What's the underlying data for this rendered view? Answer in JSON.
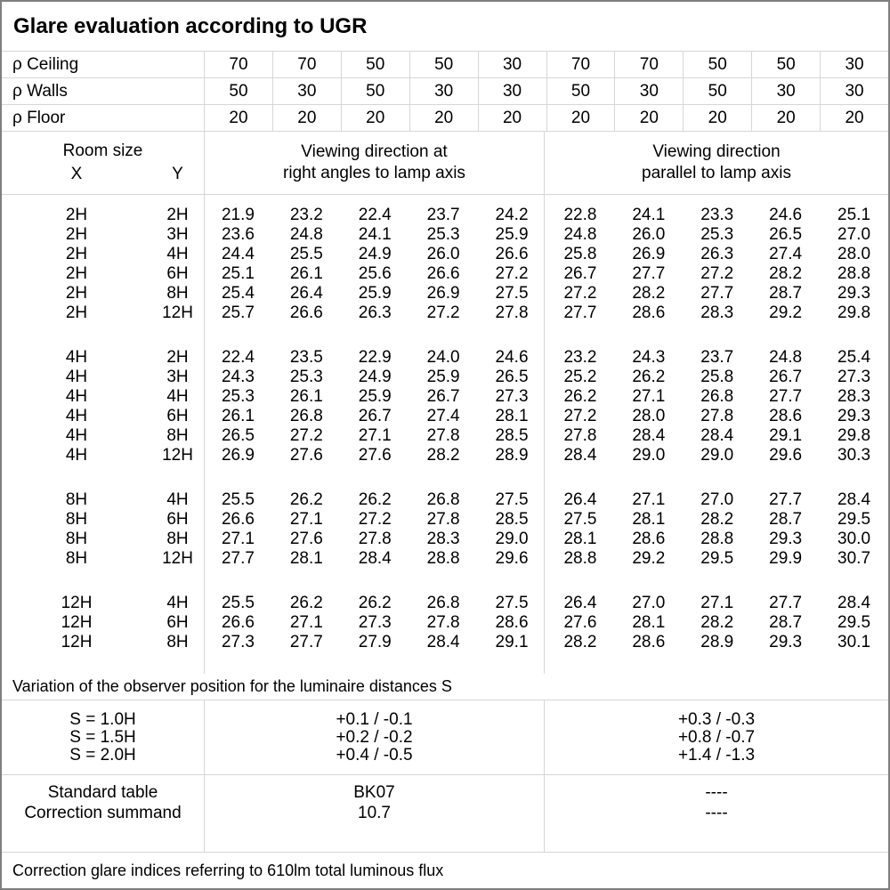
{
  "title": "Glare evaluation according to UGR",
  "reflectances": {
    "rows": [
      {
        "label": "ρ Ceiling",
        "values": [
          "70",
          "70",
          "50",
          "50",
          "30",
          "70",
          "70",
          "50",
          "50",
          "30"
        ]
      },
      {
        "label": "ρ Walls",
        "values": [
          "50",
          "30",
          "50",
          "30",
          "30",
          "50",
          "30",
          "50",
          "30",
          "30"
        ]
      },
      {
        "label": "ρ Floor",
        "values": [
          "20",
          "20",
          "20",
          "20",
          "20",
          "20",
          "20",
          "20",
          "20",
          "20"
        ]
      }
    ]
  },
  "room_size_header": {
    "title": "Room size",
    "x_label": "X",
    "y_label": "Y"
  },
  "section_headers": {
    "perpendicular": "Viewing direction at\nright angles to lamp axis",
    "parallel": "Viewing direction\nparallel to lamp axis"
  },
  "ugr_blocks": [
    {
      "rows": [
        {
          "x": "2H",
          "y": "2H",
          "values": [
            "21.9",
            "23.2",
            "22.4",
            "23.7",
            "24.2",
            "22.8",
            "24.1",
            "23.3",
            "24.6",
            "25.1"
          ]
        },
        {
          "x": "2H",
          "y": "3H",
          "values": [
            "23.6",
            "24.8",
            "24.1",
            "25.3",
            "25.9",
            "24.8",
            "26.0",
            "25.3",
            "26.5",
            "27.0"
          ]
        },
        {
          "x": "2H",
          "y": "4H",
          "values": [
            "24.4",
            "25.5",
            "24.9",
            "26.0",
            "26.6",
            "25.8",
            "26.9",
            "26.3",
            "27.4",
            "28.0"
          ]
        },
        {
          "x": "2H",
          "y": "6H",
          "values": [
            "25.1",
            "26.1",
            "25.6",
            "26.6",
            "27.2",
            "26.7",
            "27.7",
            "27.2",
            "28.2",
            "28.8"
          ]
        },
        {
          "x": "2H",
          "y": "8H",
          "values": [
            "25.4",
            "26.4",
            "25.9",
            "26.9",
            "27.5",
            "27.2",
            "28.2",
            "27.7",
            "28.7",
            "29.3"
          ]
        },
        {
          "x": "2H",
          "y": "12H",
          "values": [
            "25.7",
            "26.6",
            "26.3",
            "27.2",
            "27.8",
            "27.7",
            "28.6",
            "28.3",
            "29.2",
            "29.8"
          ]
        }
      ]
    },
    {
      "rows": [
        {
          "x": "4H",
          "y": "2H",
          "values": [
            "22.4",
            "23.5",
            "22.9",
            "24.0",
            "24.6",
            "23.2",
            "24.3",
            "23.7",
            "24.8",
            "25.4"
          ]
        },
        {
          "x": "4H",
          "y": "3H",
          "values": [
            "24.3",
            "25.3",
            "24.9",
            "25.9",
            "26.5",
            "25.2",
            "26.2",
            "25.8",
            "26.7",
            "27.3"
          ]
        },
        {
          "x": "4H",
          "y": "4H",
          "values": [
            "25.3",
            "26.1",
            "25.9",
            "26.7",
            "27.3",
            "26.2",
            "27.1",
            "26.8",
            "27.7",
            "28.3"
          ]
        },
        {
          "x": "4H",
          "y": "6H",
          "values": [
            "26.1",
            "26.8",
            "26.7",
            "27.4",
            "28.1",
            "27.2",
            "28.0",
            "27.8",
            "28.6",
            "29.3"
          ]
        },
        {
          "x": "4H",
          "y": "8H",
          "values": [
            "26.5",
            "27.2",
            "27.1",
            "27.8",
            "28.5",
            "27.8",
            "28.4",
            "28.4",
            "29.1",
            "29.8"
          ]
        },
        {
          "x": "4H",
          "y": "12H",
          "values": [
            "26.9",
            "27.6",
            "27.6",
            "28.2",
            "28.9",
            "28.4",
            "29.0",
            "29.0",
            "29.6",
            "30.3"
          ]
        }
      ]
    },
    {
      "rows": [
        {
          "x": "8H",
          "y": "4H",
          "values": [
            "25.5",
            "26.2",
            "26.2",
            "26.8",
            "27.5",
            "26.4",
            "27.1",
            "27.0",
            "27.7",
            "28.4"
          ]
        },
        {
          "x": "8H",
          "y": "6H",
          "values": [
            "26.6",
            "27.1",
            "27.2",
            "27.8",
            "28.5",
            "27.5",
            "28.1",
            "28.2",
            "28.7",
            "29.5"
          ]
        },
        {
          "x": "8H",
          "y": "8H",
          "values": [
            "27.1",
            "27.6",
            "27.8",
            "28.3",
            "29.0",
            "28.1",
            "28.6",
            "28.8",
            "29.3",
            "30.0"
          ]
        },
        {
          "x": "8H",
          "y": "12H",
          "values": [
            "27.7",
            "28.1",
            "28.4",
            "28.8",
            "29.6",
            "28.8",
            "29.2",
            "29.5",
            "29.9",
            "30.7"
          ]
        }
      ]
    },
    {
      "rows": [
        {
          "x": "12H",
          "y": "4H",
          "values": [
            "25.5",
            "26.2",
            "26.2",
            "26.8",
            "27.5",
            "26.4",
            "27.0",
            "27.1",
            "27.7",
            "28.4"
          ]
        },
        {
          "x": "12H",
          "y": "6H",
          "values": [
            "26.6",
            "27.1",
            "27.3",
            "27.8",
            "28.6",
            "27.6",
            "28.1",
            "28.2",
            "28.7",
            "29.5"
          ]
        },
        {
          "x": "12H",
          "y": "8H",
          "values": [
            "27.3",
            "27.7",
            "27.9",
            "28.4",
            "29.1",
            "28.2",
            "28.6",
            "28.9",
            "29.3",
            "30.1"
          ]
        }
      ]
    }
  ],
  "variation_note": "Variation of the observer position for the luminaire distances S",
  "s_variation": {
    "labels": [
      "S = 1.0H",
      "S = 1.5H",
      "S = 2.0H"
    ],
    "perpendicular": [
      "+0.1 / -0.1",
      "+0.2 / -0.2",
      "+0.4 / -0.5"
    ],
    "parallel": [
      "+0.3 / -0.3",
      "+0.8 / -0.7",
      "+1.4 / -1.3"
    ]
  },
  "summary": {
    "labels": [
      "Standard table",
      "Correction summand"
    ],
    "perpendicular": [
      "BK07",
      "10.7"
    ],
    "parallel": [
      "----",
      "----"
    ]
  },
  "footer": "Correction glare indices referring to 610lm total luminous flux",
  "colors": {
    "border_outer": "#7f7f7f",
    "border_inner": "#d6d6d6",
    "text": "#000000",
    "background": "#ffffff"
  }
}
